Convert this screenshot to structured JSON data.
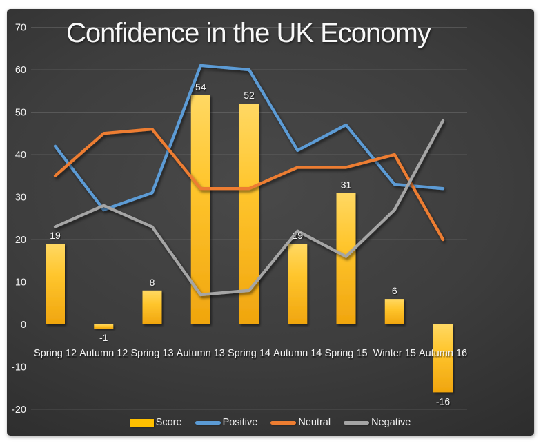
{
  "title": "Confidence in the UK Economy",
  "chart_data": {
    "type": "combo (bar + line)",
    "title": "Confidence in the UK Economy",
    "categories": [
      "Spring 12",
      "Autumn 12",
      "Spring 13",
      "Autumn 13",
      "Spring 14",
      "Autumn 14",
      "Spring 15",
      "Winter 15",
      "Autumn 16"
    ],
    "series": [
      {
        "name": "Score",
        "type": "bar",
        "color": "#FFC000",
        "values": [
          19,
          -1,
          8,
          54,
          52,
          19,
          31,
          6,
          -16
        ],
        "data_labels": true
      },
      {
        "name": "Positive",
        "type": "line",
        "color": "#5B9BD5",
        "values": [
          42,
          27,
          31,
          61,
          60,
          41,
          47,
          33,
          32
        ]
      },
      {
        "name": "Neutral",
        "type": "line",
        "color": "#ED7D31",
        "values": [
          35,
          45,
          46,
          32,
          32,
          37,
          37,
          40,
          20
        ]
      },
      {
        "name": "Negative",
        "type": "line",
        "color": "#A5A5A5",
        "values": [
          23,
          28,
          23,
          7,
          8,
          22,
          16,
          27,
          48
        ]
      }
    ],
    "y_axis": {
      "min": -20,
      "max": 70,
      "step": 10,
      "tick_labels": [
        "70",
        "60",
        "50",
        "40",
        "30",
        "20",
        "10",
        "0",
        "-10",
        "-20"
      ]
    },
    "grid": true,
    "legend_position": "bottom",
    "background": "dark gray panel on white page",
    "colors": {
      "bar_gradient_top": "#ffd863",
      "bar_gradient_bottom": "#f0a50e",
      "gridline": "rgba(210,210,210,0.18)",
      "zero_axis": "#a6a6a6",
      "text": "#f2f2f2"
    }
  }
}
